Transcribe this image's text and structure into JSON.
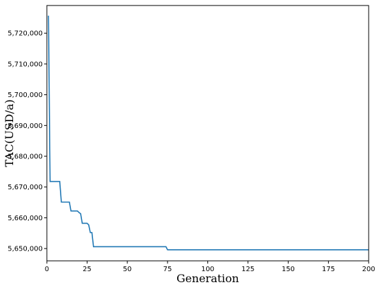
{
  "chart_data": {
    "type": "line",
    "title": "",
    "xlabel": "Generation",
    "ylabel": "TAC(USD/a)",
    "xlim": [
      0,
      200
    ],
    "ylim": [
      5646000,
      5729000
    ],
    "x_ticks": [
      0,
      25,
      50,
      75,
      100,
      125,
      150,
      175,
      200
    ],
    "y_ticks": [
      5650000,
      5660000,
      5670000,
      5680000,
      5690000,
      5700000,
      5710000,
      5720000
    ],
    "x_tick_labels": [
      "0",
      "25",
      "50",
      "75",
      "100",
      "125",
      "150",
      "175",
      "200"
    ],
    "y_tick_labels": [
      "5,650,000",
      "5,660,000",
      "5,670,000",
      "5,680,000",
      "5,690,000",
      "5,700,000",
      "5,710,000",
      "5,720,000"
    ],
    "grid": false,
    "legend": "none",
    "series": [
      {
        "color": "#1f77b4",
        "step": true,
        "x": [
          1,
          2,
          3,
          8,
          9,
          14,
          15,
          19,
          20,
          21,
          22,
          25,
          26,
          27,
          28,
          29,
          30,
          74,
          75,
          200
        ],
        "values": [
          5725700,
          5671800,
          5671800,
          5671800,
          5665100,
          5665100,
          5662200,
          5662200,
          5661700,
          5661300,
          5658200,
          5658200,
          5657700,
          5655200,
          5655200,
          5650600,
          5650600,
          5650600,
          5649600,
          5649600
        ]
      }
    ]
  }
}
